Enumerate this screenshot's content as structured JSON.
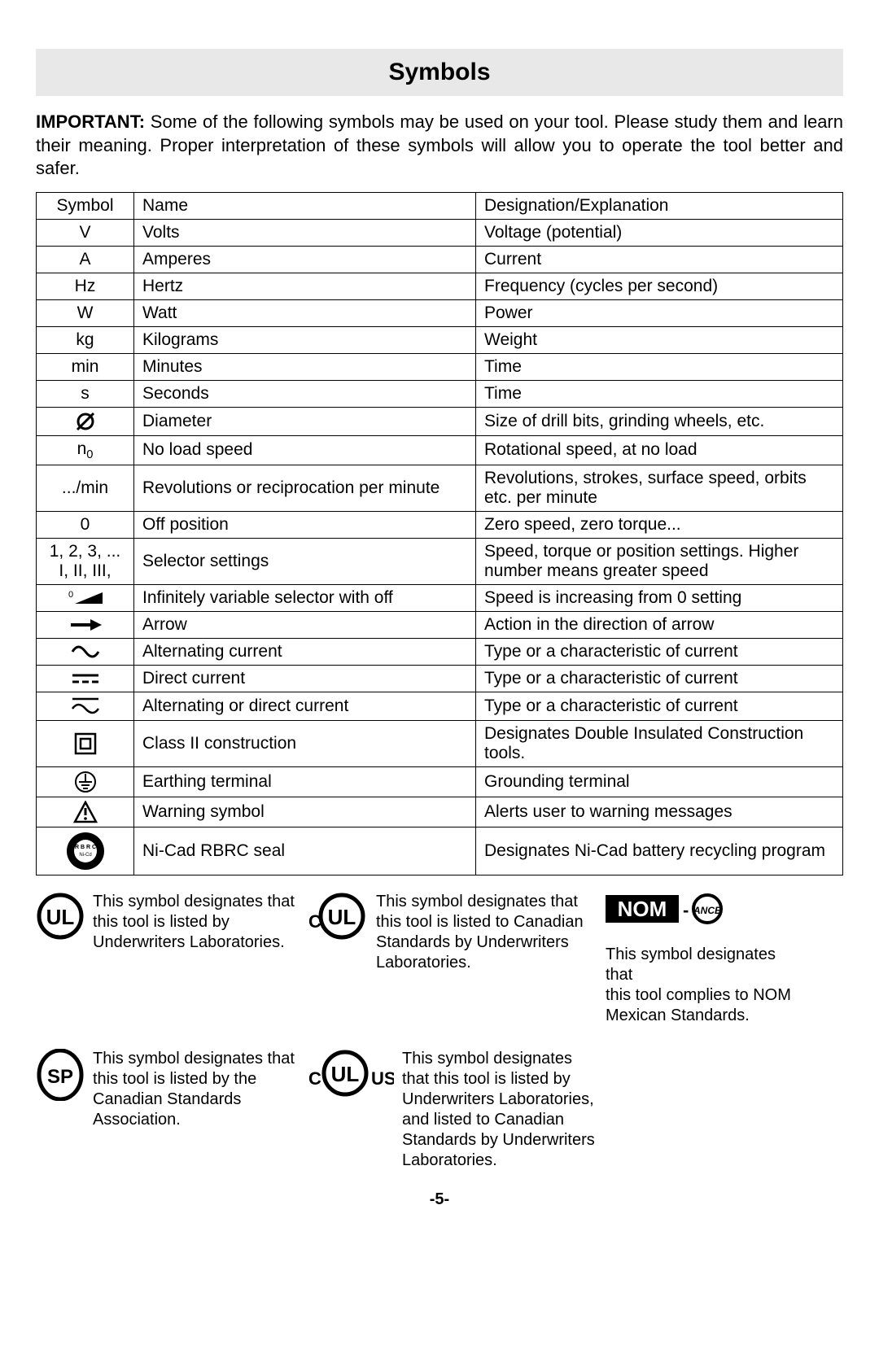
{
  "title": "Symbols",
  "intro_bold": "IMPORTANT:",
  "intro_rest": " Some of the following symbols may be used on your tool.  Please study them and learn their meaning.  Proper interpretation of these symbols will allow you to operate the tool better and safer.",
  "columns": {
    "c1": "Symbol",
    "c2": "Name",
    "c3": "Designation/Explanation"
  },
  "rows": [
    {
      "sym": "V",
      "name": "Volts",
      "desc": "Voltage (potential)"
    },
    {
      "sym": "A",
      "name": "Amperes",
      "desc": "Current"
    },
    {
      "sym": "Hz",
      "name": "Hertz",
      "desc": "Frequency (cycles per second)"
    },
    {
      "sym": "W",
      "name": "Watt",
      "desc": "Power"
    },
    {
      "sym": "kg",
      "name": "Kilograms",
      "desc": "Weight"
    },
    {
      "sym": "min",
      "name": "Minutes",
      "desc": "Time"
    },
    {
      "sym": "s",
      "name": "Seconds",
      "desc": "Time"
    },
    {
      "sym": "diameter",
      "name": "Diameter",
      "desc": "Size of drill bits, grinding wheels,  etc."
    },
    {
      "sym": "n0",
      "name": "No load speed",
      "desc": "Rotational speed, at no load"
    },
    {
      "sym": ".../min",
      "name": "Revolutions or reciprocation per minute",
      "desc": "Revolutions, strokes, surface speed, orbits etc. per minute"
    },
    {
      "sym": "0",
      "name": "Off position",
      "desc": "Zero speed, zero torque..."
    },
    {
      "sym": "1, 2, 3, ...\nI, II, III,",
      "name": "Selector settings",
      "desc": "Speed, torque or position settings. Higher number means greater speed"
    },
    {
      "sym": "ramp",
      "name": "Infinitely variable selector with off",
      "desc": "Speed is increasing from 0 setting"
    },
    {
      "sym": "arrow",
      "name": "Arrow",
      "desc": "Action in the direction of arrow"
    },
    {
      "sym": "ac",
      "name": "Alternating current",
      "desc": "Type or a characteristic of current"
    },
    {
      "sym": "dc",
      "name": "Direct current",
      "desc": "Type or a characteristic of current"
    },
    {
      "sym": "acdc",
      "name": "Alternating or direct current",
      "desc": "Type or a characteristic of current"
    },
    {
      "sym": "class2",
      "name": "Class II  construction",
      "desc": "Designates Double Insulated Construction tools."
    },
    {
      "sym": "earth",
      "name": "Earthing terminal",
      "desc": "Grounding terminal"
    },
    {
      "sym": "warn",
      "name": "Warning symbol",
      "desc": "Alerts user to warning messages"
    },
    {
      "sym": "rbrc",
      "name": "Ni-Cad RBRC seal",
      "desc": "Designates Ni-Cad battery recycling program"
    }
  ],
  "certs": {
    "ul": "This symbol designates that this tool is listed by Underwriters Laboratories.",
    "cul": "This symbol designates that this tool is listed to Canadian Standards by Underwriters Laboratories.",
    "csa": "This symbol designates that this tool is listed by the Canadian Standards Association.",
    "culus": "This symbol designates that this tool is listed by Underwriters Laboratories, and listed to Canadian Standards by Underwriters Laboratories.",
    "nom": "This symbol designates that\nthis tool complies to NOM Mexican Standards."
  },
  "page_number": "-5-",
  "style": {
    "title_bg": "#e8e8e8",
    "border_color": "#000000",
    "body_font_size": 21,
    "title_font_size": 30,
    "intro_font_size": 22,
    "cert_font_size": 20
  }
}
